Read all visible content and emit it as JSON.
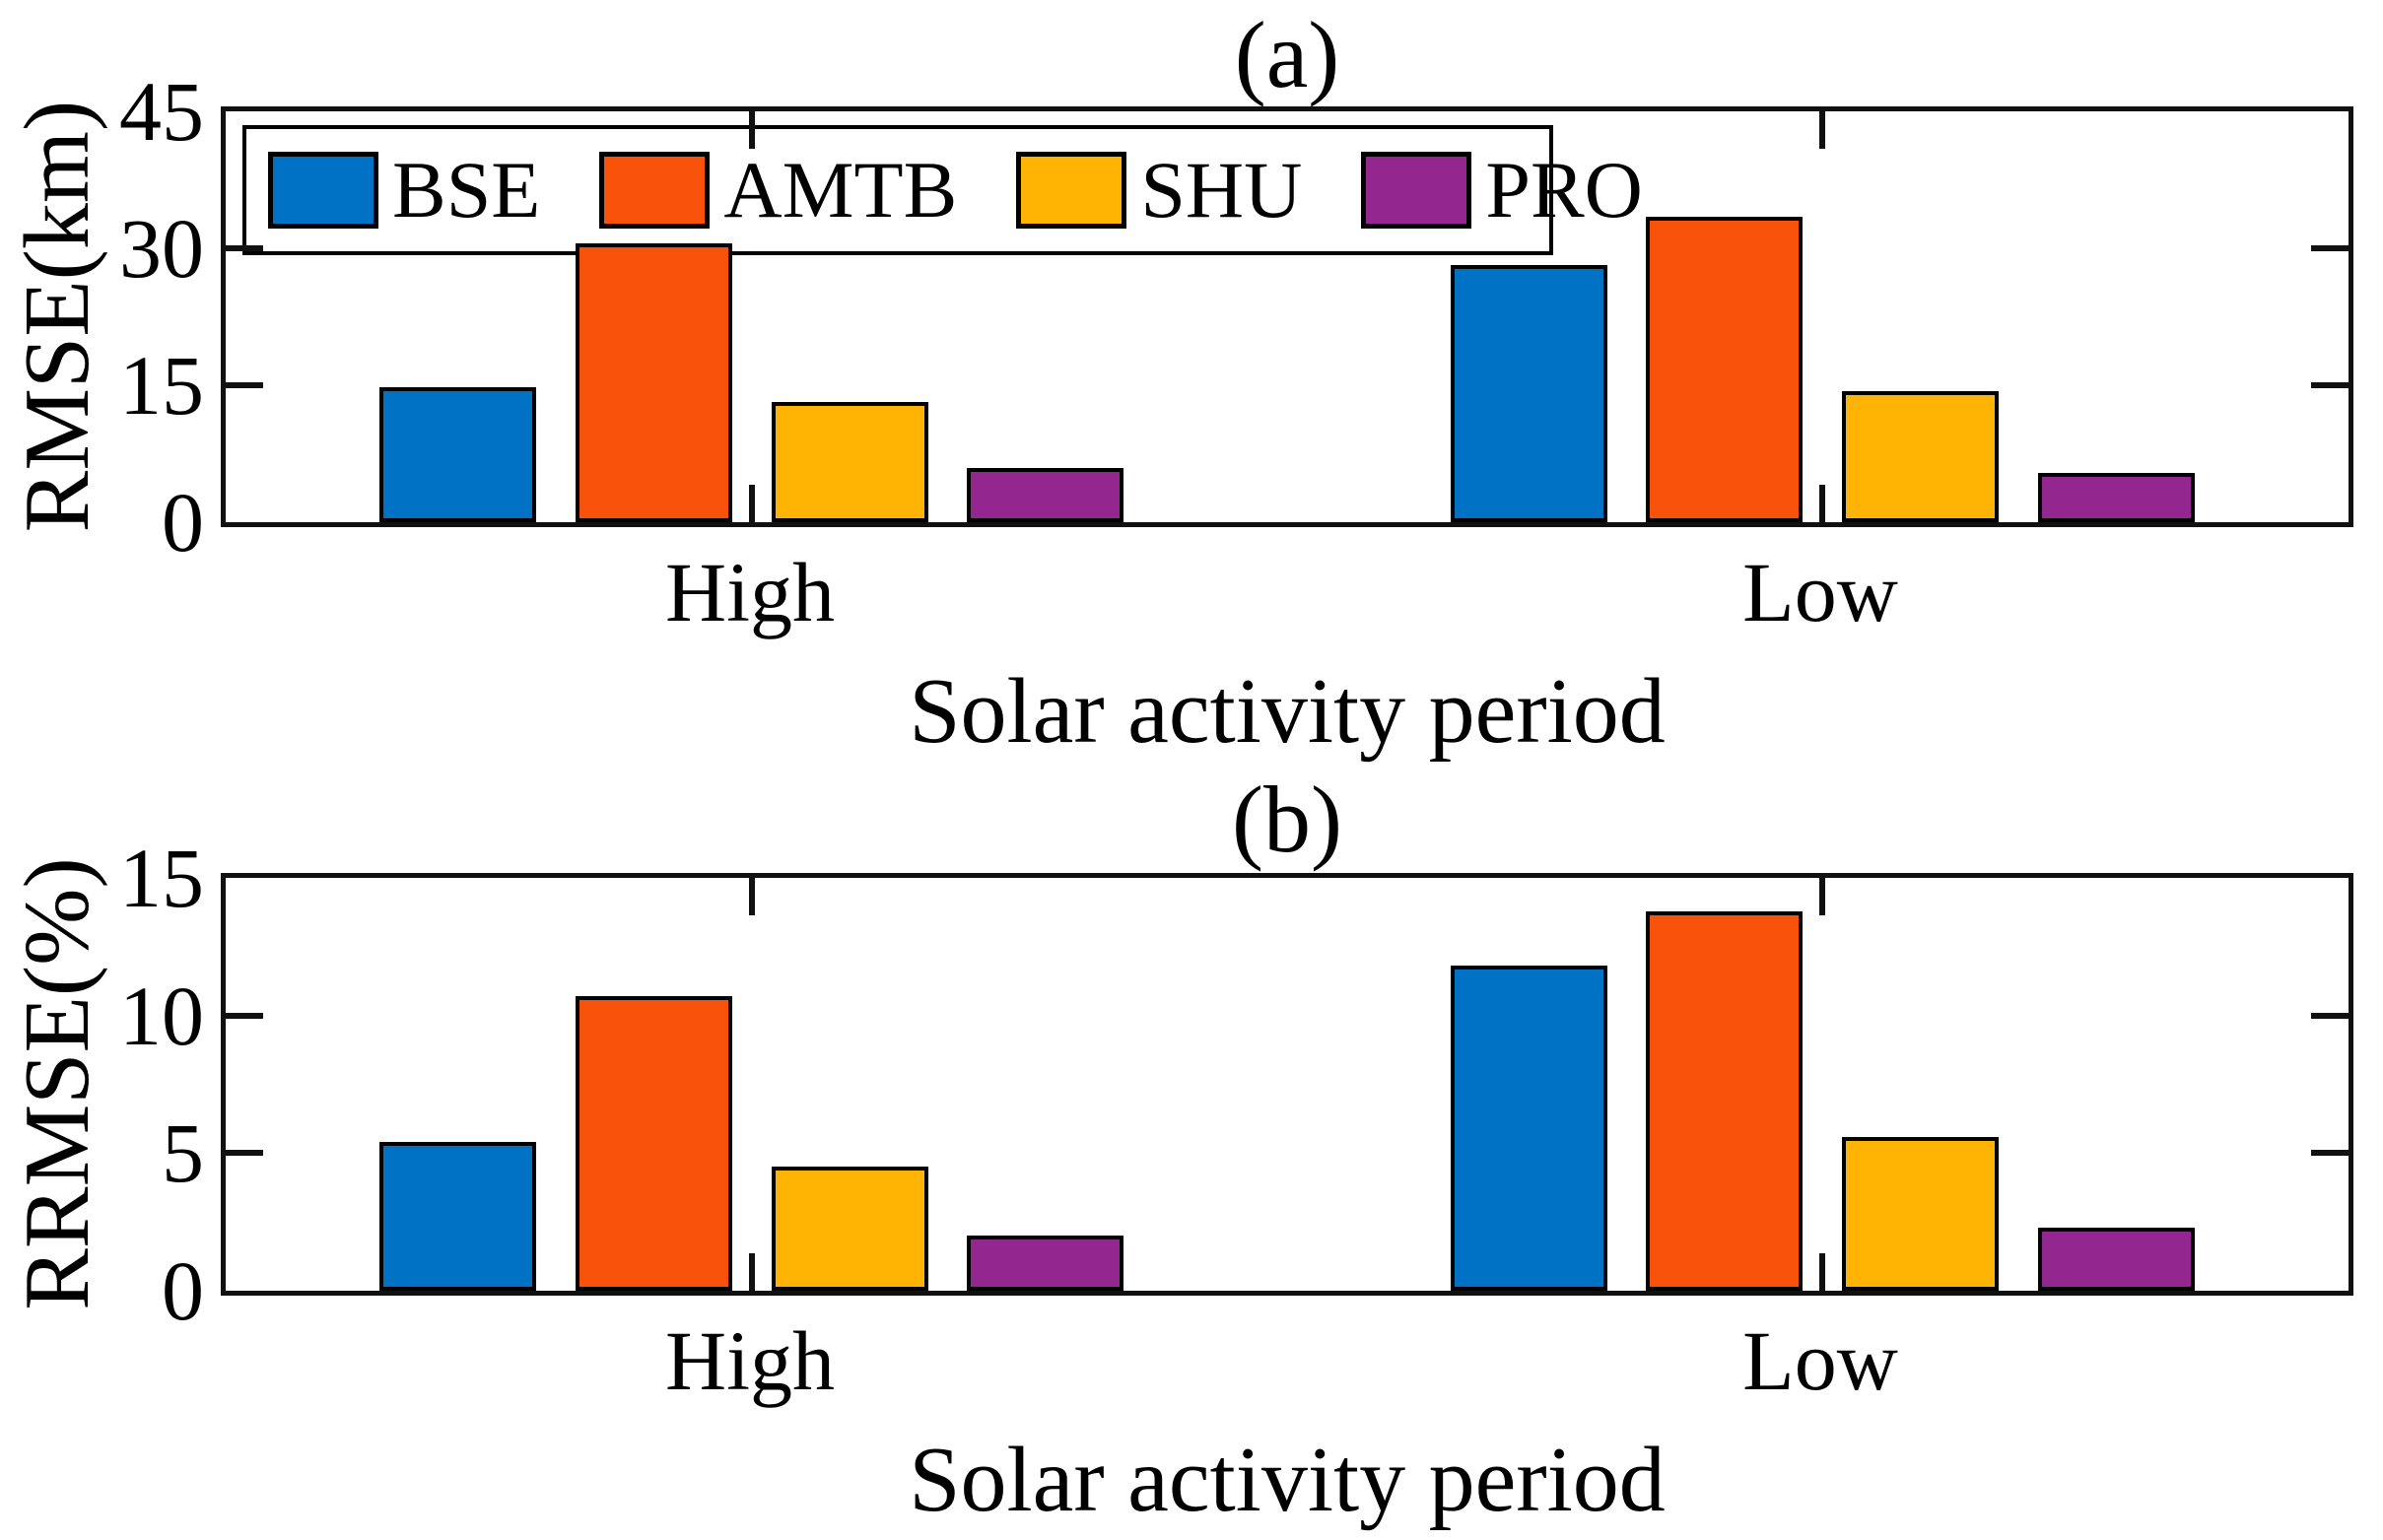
{
  "figure": {
    "background": "#ffffff",
    "panels": [
      {
        "tag": "(a)",
        "ylabel": "RMSE(km)",
        "xlabel": "Solar activity period",
        "categories": [
          "High",
          "Low"
        ]
      },
      {
        "tag": "(b)",
        "ylabel": "RRMSE(%)",
        "xlabel": "Solar activity period",
        "categories": [
          "High",
          "Low"
        ]
      }
    ]
  },
  "legend": {
    "position": "top-inside",
    "items": [
      {
        "label": "BSE",
        "color": "#0072C5"
      },
      {
        "label": "AMTB",
        "color": "#F85109"
      },
      {
        "label": "SHU",
        "color": "#FFB303"
      },
      {
        "label": "PRO",
        "color": "#93278F"
      }
    ]
  },
  "styles": {
    "axis_color": "#111111",
    "bar_border_color": "#000000",
    "text_color": "#000000"
  },
  "chart_data": [
    {
      "type": "bar",
      "title": "(a)",
      "xlabel": "Solar activity period",
      "ylabel": "RMSE(km)",
      "categories": [
        "High",
        "Low"
      ],
      "series": [
        {
          "name": "BSE",
          "color": "#0072C5",
          "values": [
            14.8,
            28.2
          ]
        },
        {
          "name": "AMTB",
          "color": "#F85109",
          "values": [
            30.5,
            33.4
          ]
        },
        {
          "name": "SHU",
          "color": "#FFB303",
          "values": [
            13.2,
            14.4
          ]
        },
        {
          "name": "PRO",
          "color": "#93278F",
          "values": [
            5.9,
            5.4
          ]
        }
      ],
      "ylim": [
        0,
        45
      ],
      "yticks": [
        0,
        15,
        30,
        45
      ],
      "grid": false,
      "legend_visible": true,
      "legend_position": "top-inside"
    },
    {
      "type": "bar",
      "title": "(b)",
      "xlabel": "Solar activity period",
      "ylabel": "RRMSE(%)",
      "categories": [
        "High",
        "Low"
      ],
      "series": [
        {
          "name": "BSE",
          "color": "#0072C5",
          "values": [
            5.4,
            11.8
          ]
        },
        {
          "name": "AMTB",
          "color": "#F85109",
          "values": [
            10.7,
            13.8
          ]
        },
        {
          "name": "SHU",
          "color": "#FFB303",
          "values": [
            4.5,
            5.6
          ]
        },
        {
          "name": "PRO",
          "color": "#93278F",
          "values": [
            2.0,
            2.3
          ]
        }
      ],
      "ylim": [
        0,
        15
      ],
      "yticks": [
        0,
        5,
        10,
        15
      ],
      "grid": false,
      "legend_visible": false,
      "legend_position": "none"
    }
  ]
}
